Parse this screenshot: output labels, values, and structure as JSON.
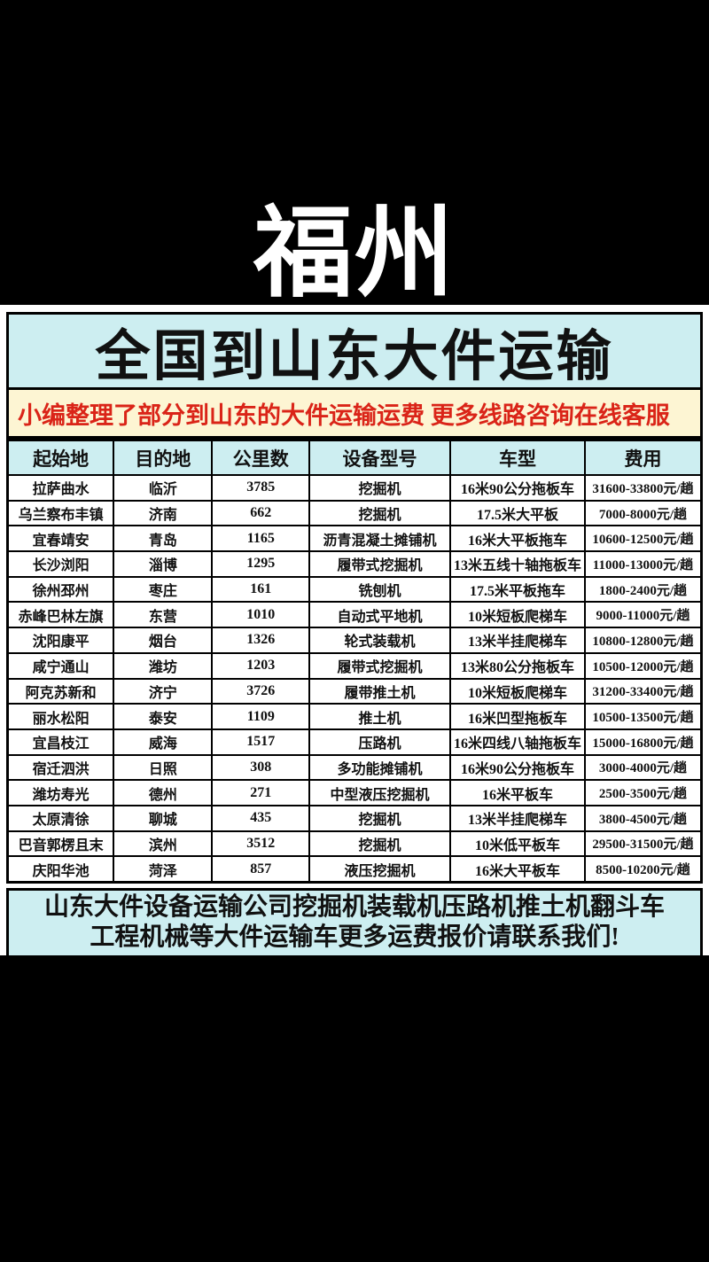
{
  "colors": {
    "cyan": "#cdeef1",
    "cream": "#fdf5d3",
    "red": "#da2418",
    "background": "#000000",
    "panel": "#ffffff"
  },
  "banner": {
    "city": "福州"
  },
  "header": {
    "title": "全国到山东大件运输",
    "notice": "小编整理了部分到山东的大件运输运费 更多线路咨询在线客服"
  },
  "table": {
    "headers": [
      "起始地",
      "目的地",
      "公里数",
      "设备型号",
      "车型",
      "费用"
    ],
    "rows": [
      [
        "拉萨曲水",
        "临沂",
        "3785",
        "挖掘机",
        "16米90公分拖板车",
        "31600-33800元/趟"
      ],
      [
        "乌兰察布丰镇",
        "济南",
        "662",
        "挖掘机",
        "17.5米大平板",
        "7000-8000元/趟"
      ],
      [
        "宜春靖安",
        "青岛",
        "1165",
        "沥青混凝土摊铺机",
        "16米大平板拖车",
        "10600-12500元/趟"
      ],
      [
        "长沙浏阳",
        "淄博",
        "1295",
        "履带式挖掘机",
        "13米五线十轴拖板车",
        "11000-13000元/趟"
      ],
      [
        "徐州邳州",
        "枣庄",
        "161",
        "铣刨机",
        "17.5米平板拖车",
        "1800-2400元/趟"
      ],
      [
        "赤峰巴林左旗",
        "东营",
        "1010",
        "自动式平地机",
        "10米短板爬梯车",
        "9000-11000元/趟"
      ],
      [
        "沈阳康平",
        "烟台",
        "1326",
        "轮式装载机",
        "13米半挂爬梯车",
        "10800-12800元/趟"
      ],
      [
        "咸宁通山",
        "潍坊",
        "1203",
        "履带式挖掘机",
        "13米80公分拖板车",
        "10500-12000元/趟"
      ],
      [
        "阿克苏新和",
        "济宁",
        "3726",
        "履带推土机",
        "10米短板爬梯车",
        "31200-33400元/趟"
      ],
      [
        "丽水松阳",
        "泰安",
        "1109",
        "推土机",
        "16米凹型拖板车",
        "10500-13500元/趟"
      ],
      [
        "宜昌枝江",
        "威海",
        "1517",
        "压路机",
        "16米四线八轴拖板车",
        "15000-16800元/趟"
      ],
      [
        "宿迁泗洪",
        "日照",
        "308",
        "多功能摊铺机",
        "16米90公分拖板车",
        "3000-4000元/趟"
      ],
      [
        "潍坊寿光",
        "德州",
        "271",
        "中型液压挖掘机",
        "16米平板车",
        "2500-3500元/趟"
      ],
      [
        "太原清徐",
        "聊城",
        "435",
        "挖掘机",
        "13米半挂爬梯车",
        "3800-4500元/趟"
      ],
      [
        "巴音郭楞且末",
        "滨州",
        "3512",
        "挖掘机",
        "10米低平板车",
        "29500-31500元/趟"
      ],
      [
        "庆阳华池",
        "菏泽",
        "857",
        "液压挖掘机",
        "16米大平板车",
        "8500-10200元/趟"
      ]
    ]
  },
  "footer": {
    "line1": "山东大件设备运输公司挖掘机装载机压路机推土机翻斗车",
    "line2": "工程机械等大件运输车更多运费报价请联系我们!"
  }
}
